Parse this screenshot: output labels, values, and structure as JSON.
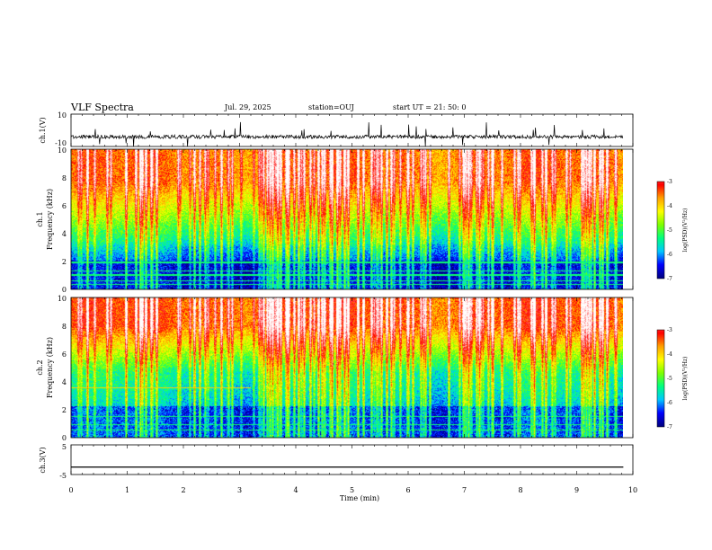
{
  "header": {
    "title": "VLF Spectra",
    "date": "Jul. 29, 2025",
    "station": "station=OUJ",
    "start": "start UT =  21: 50: 0"
  },
  "chart_data": [
    {
      "type": "line",
      "name": "ch1-waveform",
      "ylabel": "ch.1(V)",
      "ylim": [
        -10,
        10
      ],
      "ytick_labels": [
        "10",
        "-10"
      ],
      "xlim": [
        0,
        10
      ],
      "description": "noisy trace near -4 V with frequent spikes"
    },
    {
      "type": "heatmap",
      "name": "ch1-spectrogram",
      "ylabel": "ch.1 Frequency (kHz)",
      "ylabel_top": "ch.1",
      "ylabel_bottom": "Frequency (kHz)",
      "ylim": [
        0,
        10
      ],
      "ytick_labels": [
        "0",
        "2",
        "4",
        "6",
        "8",
        "10"
      ],
      "xlim": [
        0,
        9.83
      ],
      "colorbar": {
        "label": "log(PSD)(V²/Hz)",
        "range": [
          -7,
          -3
        ],
        "tick_labels": [
          "-3",
          "-4",
          "-5",
          "-6",
          "-7"
        ]
      }
    },
    {
      "type": "heatmap",
      "name": "ch2-spectrogram",
      "ylabel": "ch.2 Frequency (kHz)",
      "ylabel_top": "ch.2",
      "ylabel_bottom": "Frequency (kHz)",
      "ylim": [
        0,
        10
      ],
      "ytick_labels": [
        "0",
        "2",
        "4",
        "6",
        "8",
        "10"
      ],
      "xlim": [
        0,
        9.83
      ],
      "colorbar": {
        "label": "log(PSD)(V²/Hz)",
        "range": [
          -7,
          -3
        ],
        "tick_labels": [
          "-3",
          "-4",
          "-5",
          "-6",
          "-7"
        ]
      }
    },
    {
      "type": "line",
      "name": "ch3-waveform",
      "ylabel": "ch.3(V)",
      "ylim": [
        -5,
        5
      ],
      "ytick_labels": [
        "5",
        "-5"
      ],
      "xlim": [
        0,
        10
      ],
      "xlabel": "Time (min)",
      "xtick_labels": [
        "0",
        "1",
        "2",
        "3",
        "4",
        "5",
        "6",
        "7",
        "8",
        "9",
        "10"
      ],
      "x": [
        0,
        9.83
      ],
      "y": [
        -2.5,
        -2.5
      ]
    }
  ],
  "colors": {
    "colormap": [
      "#000080",
      "#0000ff",
      "#00c8ff",
      "#00ff80",
      "#7fff00",
      "#ffff00",
      "#ffa000",
      "#ff0000",
      "#ff8080",
      "#ffffff"
    ]
  }
}
